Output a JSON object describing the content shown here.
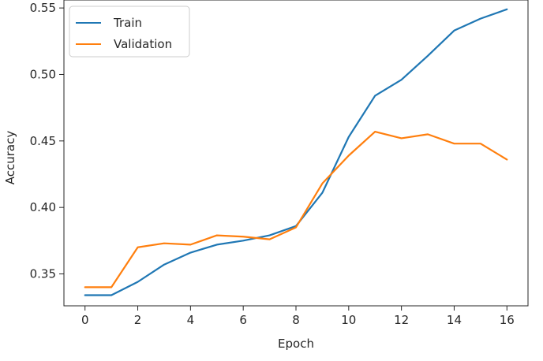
{
  "chart_data": {
    "type": "line",
    "xlabel": "Epoch",
    "ylabel": "Accuracy",
    "xlim": [
      -0.8,
      16.8
    ],
    "ylim": [
      0.326,
      0.556
    ],
    "xticks": [
      0,
      2,
      4,
      6,
      8,
      10,
      12,
      14,
      16
    ],
    "yticks": [
      0.35,
      0.4,
      0.45,
      0.5,
      0.55
    ],
    "ytick_labels": [
      "0.35",
      "0.40",
      "0.45",
      "0.50",
      "0.55"
    ],
    "xtick_labels": [
      "0",
      "2",
      "4",
      "6",
      "8",
      "10",
      "12",
      "14",
      "16"
    ],
    "grid": false,
    "legend_position": "top-left",
    "x": [
      0,
      1,
      2,
      3,
      4,
      5,
      6,
      7,
      8,
      9,
      10,
      11,
      12,
      13,
      14,
      15,
      16
    ],
    "series": [
      {
        "name": "Train",
        "color": "#1f77b4",
        "values": [
          0.334,
          0.334,
          0.344,
          0.357,
          0.366,
          0.372,
          0.375,
          0.379,
          0.386,
          0.411,
          0.453,
          0.484,
          0.496,
          0.514,
          0.533,
          0.542,
          0.549
        ]
      },
      {
        "name": "Validation",
        "color": "#ff7f0e",
        "values": [
          0.34,
          0.34,
          0.37,
          0.373,
          0.372,
          0.379,
          0.378,
          0.376,
          0.385,
          0.418,
          0.439,
          0.457,
          0.452,
          0.455,
          0.448,
          0.448,
          0.436
        ]
      }
    ]
  }
}
